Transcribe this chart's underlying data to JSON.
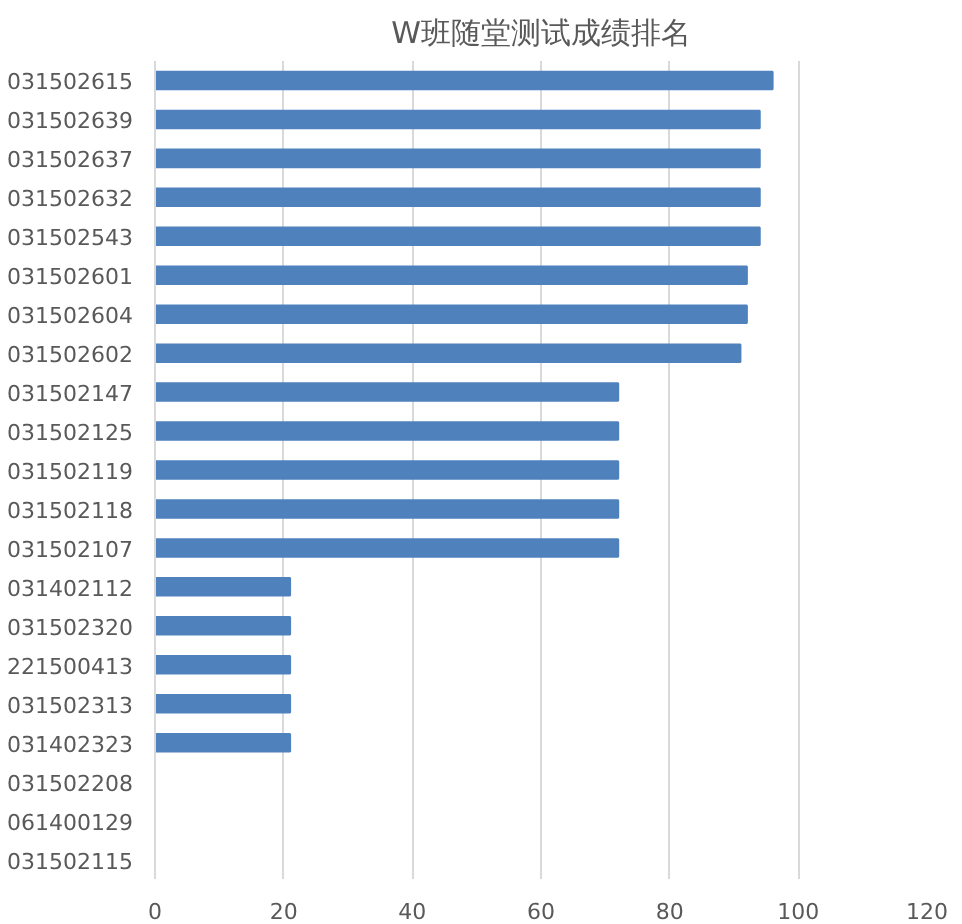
{
  "chart_data": {
    "type": "bar",
    "orientation": "horizontal",
    "title": "W班随堂测试成绩排名",
    "categories": [
      "031502615",
      "031502639",
      "031502637",
      "031502632",
      "031502543",
      "031502601",
      "031502604",
      "031502602",
      "031502147",
      "031502125",
      "031502119",
      "031502118",
      "031502107",
      "031402112",
      "031502320",
      "221500413",
      "031502313",
      "031402323",
      "031502208",
      "061400129",
      "031502115"
    ],
    "values": [
      96,
      94,
      94,
      94,
      94,
      92,
      92,
      91,
      72,
      72,
      72,
      72,
      72,
      21,
      21,
      21,
      21,
      21,
      0,
      0,
      0
    ],
    "color": "#4f81bd",
    "xlim": [
      0,
      120
    ],
    "xticks": [
      0,
      20,
      40,
      60,
      80,
      100,
      120
    ],
    "grid": "x"
  }
}
